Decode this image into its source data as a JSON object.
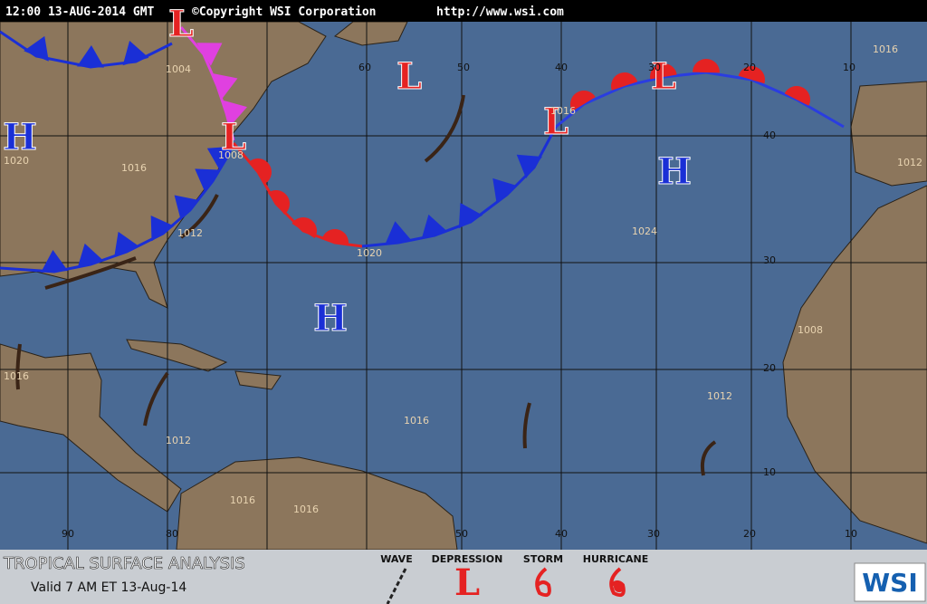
{
  "header": {
    "timestamp": "12:00 13-AUG-2014 GMT",
    "copyright": "©Copyright WSI Corporation",
    "url": "http://www.wsi.com"
  },
  "map": {
    "pressure_centers": [
      "L",
      "L",
      "L",
      "L",
      "L",
      "H",
      "H",
      "H"
    ],
    "isobar_labels": [
      "1004",
      "1008",
      "1016",
      "1020",
      "1012",
      "1020",
      "1016",
      "1024",
      "1016",
      "1012",
      "1008",
      "1012",
      "1016",
      "1012",
      "1016",
      "1016",
      "1016"
    ],
    "longitude_labels_top": [
      "60",
      "50",
      "40",
      "30",
      "20",
      "10"
    ],
    "longitude_labels_bottom": [
      "90",
      "80",
      "50",
      "40",
      "30",
      "20",
      "10"
    ],
    "latitude_labels": [
      "40",
      "30",
      "20",
      "10"
    ]
  },
  "footer": {
    "title": "TROPICAL SURFACE ANALYSIS",
    "valid": "Valid 7 AM ET 13-Aug-14",
    "legend": [
      {
        "label": "WAVE"
      },
      {
        "label": "DEPRESSION",
        "symbol": "L"
      },
      {
        "label": "STORM"
      },
      {
        "label": "HURRICANE"
      }
    ],
    "logo": "WSI"
  }
}
